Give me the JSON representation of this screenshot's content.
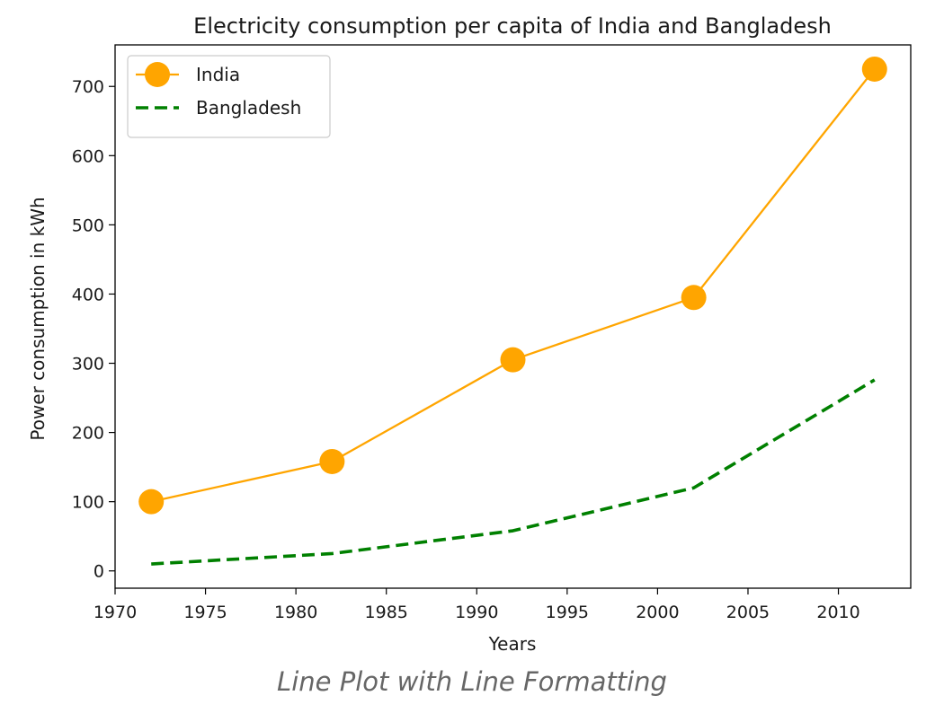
{
  "chart_data": {
    "type": "line",
    "title": "Electricity consumption per capita of India and Bangladesh",
    "xlabel": "Years",
    "ylabel": "Power consumption in kWh",
    "xlim": [
      1970,
      2014
    ],
    "ylim": [
      -25,
      760
    ],
    "xticks": [
      1970,
      1975,
      1980,
      1985,
      1990,
      1995,
      2000,
      2005,
      2010
    ],
    "yticks": [
      0,
      100,
      200,
      300,
      400,
      500,
      600,
      700
    ],
    "grid": false,
    "legend_position": "top-left",
    "x": [
      1972,
      1982,
      1992,
      2002,
      2012
    ],
    "series": [
      {
        "name": "India",
        "values": [
          100,
          158,
          305,
          395,
          725
        ],
        "color": "#FFA500",
        "line_style": "solid",
        "marker": "circle"
      },
      {
        "name": "Bangladesh",
        "values": [
          10,
          25,
          58,
          120,
          276
        ],
        "color": "#008000",
        "line_style": "dashed",
        "marker": "none"
      }
    ]
  },
  "caption": "Line Plot with Line Formatting"
}
